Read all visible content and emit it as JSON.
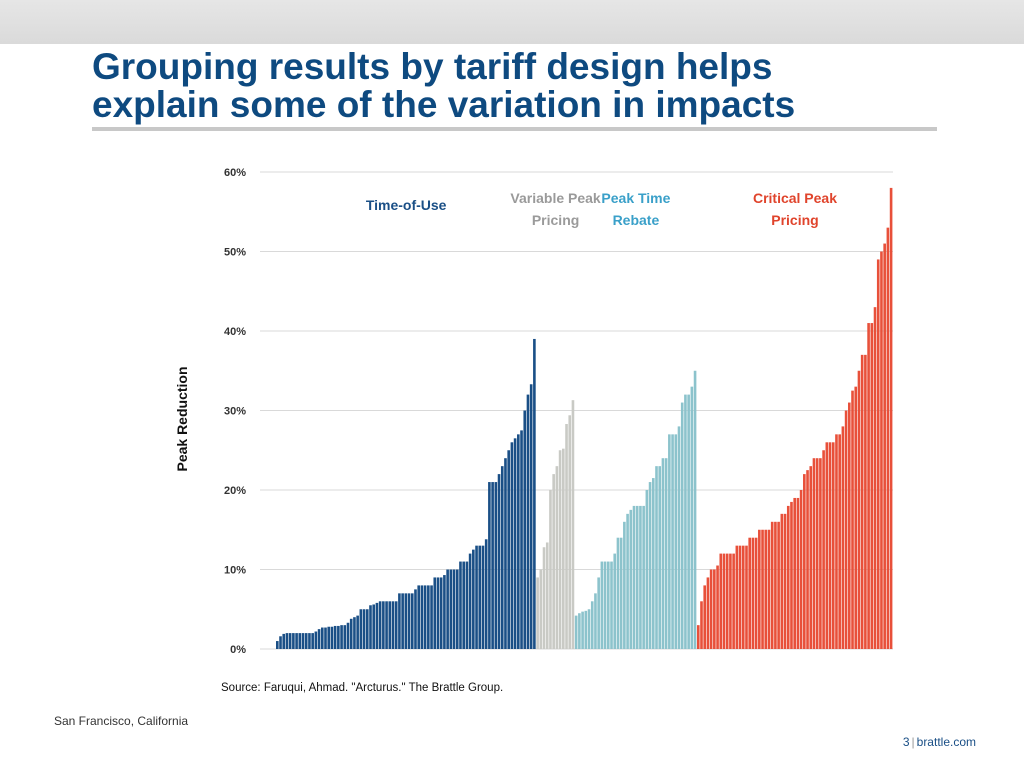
{
  "slide": {
    "title": "Grouping results by tariff design helps\nexplain some of the variation in impacts",
    "location": "San Francisco, California",
    "page_number": "3",
    "separator": "|",
    "site": "brattle.com"
  },
  "colors": {
    "title": "#0e4a80",
    "time_of_use": "#1a4f86",
    "variable_peak": "#c9cac5",
    "peak_time_rebate": "#8cc3cc",
    "critical_peak": "#e8503a"
  },
  "chart_data": {
    "type": "bar",
    "ylabel": "Peak Reduction",
    "ylim": [
      0,
      60
    ],
    "yticks": [
      "0%",
      "10%",
      "20%",
      "30%",
      "40%",
      "50%",
      "60%"
    ],
    "source": "Source: Faruqui, Ahmad. \"Arcturus.\" The Brattle Group.",
    "grid": true,
    "series": [
      {
        "name": "Time-of-Use",
        "label_lines": [
          "Time-of-Use"
        ],
        "color": "#1a4f86",
        "label_color": "#1a4f86",
        "values": [
          1.0,
          1.6,
          1.9,
          2.0,
          2.0,
          2.0,
          2.0,
          2.0,
          2.0,
          2.0,
          2.0,
          2.0,
          2.2,
          2.5,
          2.7,
          2.7,
          2.8,
          2.8,
          2.9,
          2.9,
          3.0,
          3.0,
          3.3,
          3.8,
          4.0,
          4.2,
          5.0,
          5.0,
          5.0,
          5.5,
          5.6,
          5.8,
          6.0,
          6.0,
          6.0,
          6.0,
          6.0,
          6.0,
          7.0,
          7.0,
          7.0,
          7.0,
          7.0,
          7.5,
          8.0,
          8.0,
          8.0,
          8.0,
          8.0,
          9.0,
          9.0,
          9.0,
          9.3,
          10.0,
          10.0,
          10.0,
          10.0,
          11.0,
          11.0,
          11.0,
          12.0,
          12.5,
          13.0,
          13.0,
          13.0,
          13.8,
          21.0,
          21.0,
          21.0,
          22.0,
          23.0,
          24.0,
          25.0,
          26.0,
          26.5,
          27.0,
          27.5,
          30.0,
          32.0,
          33.3,
          39.0
        ]
      },
      {
        "name": "Variable Peak Pricing",
        "label_lines": [
          "Variable Peak",
          "Pricing"
        ],
        "color": "#c9cac5",
        "label_color": "#9a9a9a",
        "values": [
          9.0,
          10.0,
          12.8,
          13.4,
          20.0,
          22.0,
          23.0,
          25.0,
          25.2,
          28.3,
          29.4,
          31.3
        ]
      },
      {
        "name": "Peak Time Rebate",
        "label_lines": [
          "Peak Time",
          "Rebate"
        ],
        "color": "#8cc3cc",
        "label_color": "#3aa0c9",
        "values": [
          4.2,
          4.5,
          4.7,
          4.8,
          5.0,
          6.0,
          7.0,
          9.0,
          11.0,
          11.0,
          11.0,
          11.0,
          12.0,
          14.0,
          14.0,
          16.0,
          17.0,
          17.5,
          18.0,
          18.0,
          18.0,
          18.0,
          20.0,
          21.0,
          21.5,
          23.0,
          23.0,
          24.0,
          24.0,
          27.0,
          27.0,
          27.0,
          28.0,
          31.0,
          32.0,
          32.0,
          33.0,
          35.0
        ]
      },
      {
        "name": "Critical Peak Pricing",
        "label_lines": [
          "Critical Peak",
          "Pricing"
        ],
        "color": "#e8503a",
        "label_color": "#e0442c",
        "values": [
          3.0,
          6.0,
          8.0,
          9.0,
          10.0,
          10.0,
          10.5,
          12.0,
          12.0,
          12.0,
          12.0,
          12.0,
          13.0,
          13.0,
          13.0,
          13.0,
          14.0,
          14.0,
          14.0,
          15.0,
          15.0,
          15.0,
          15.0,
          16.0,
          16.0,
          16.0,
          17.0,
          17.0,
          18.0,
          18.5,
          19.0,
          19.0,
          20.0,
          22.0,
          22.5,
          23.0,
          24.0,
          24.0,
          24.0,
          25.0,
          26.0,
          26.0,
          26.0,
          27.0,
          27.0,
          28.0,
          30.0,
          31.0,
          32.5,
          33.0,
          35.0,
          37.0,
          37.0,
          41.0,
          41.0,
          43.0,
          49.0,
          50.0,
          51.0,
          53.0,
          58.0
        ]
      }
    ]
  }
}
